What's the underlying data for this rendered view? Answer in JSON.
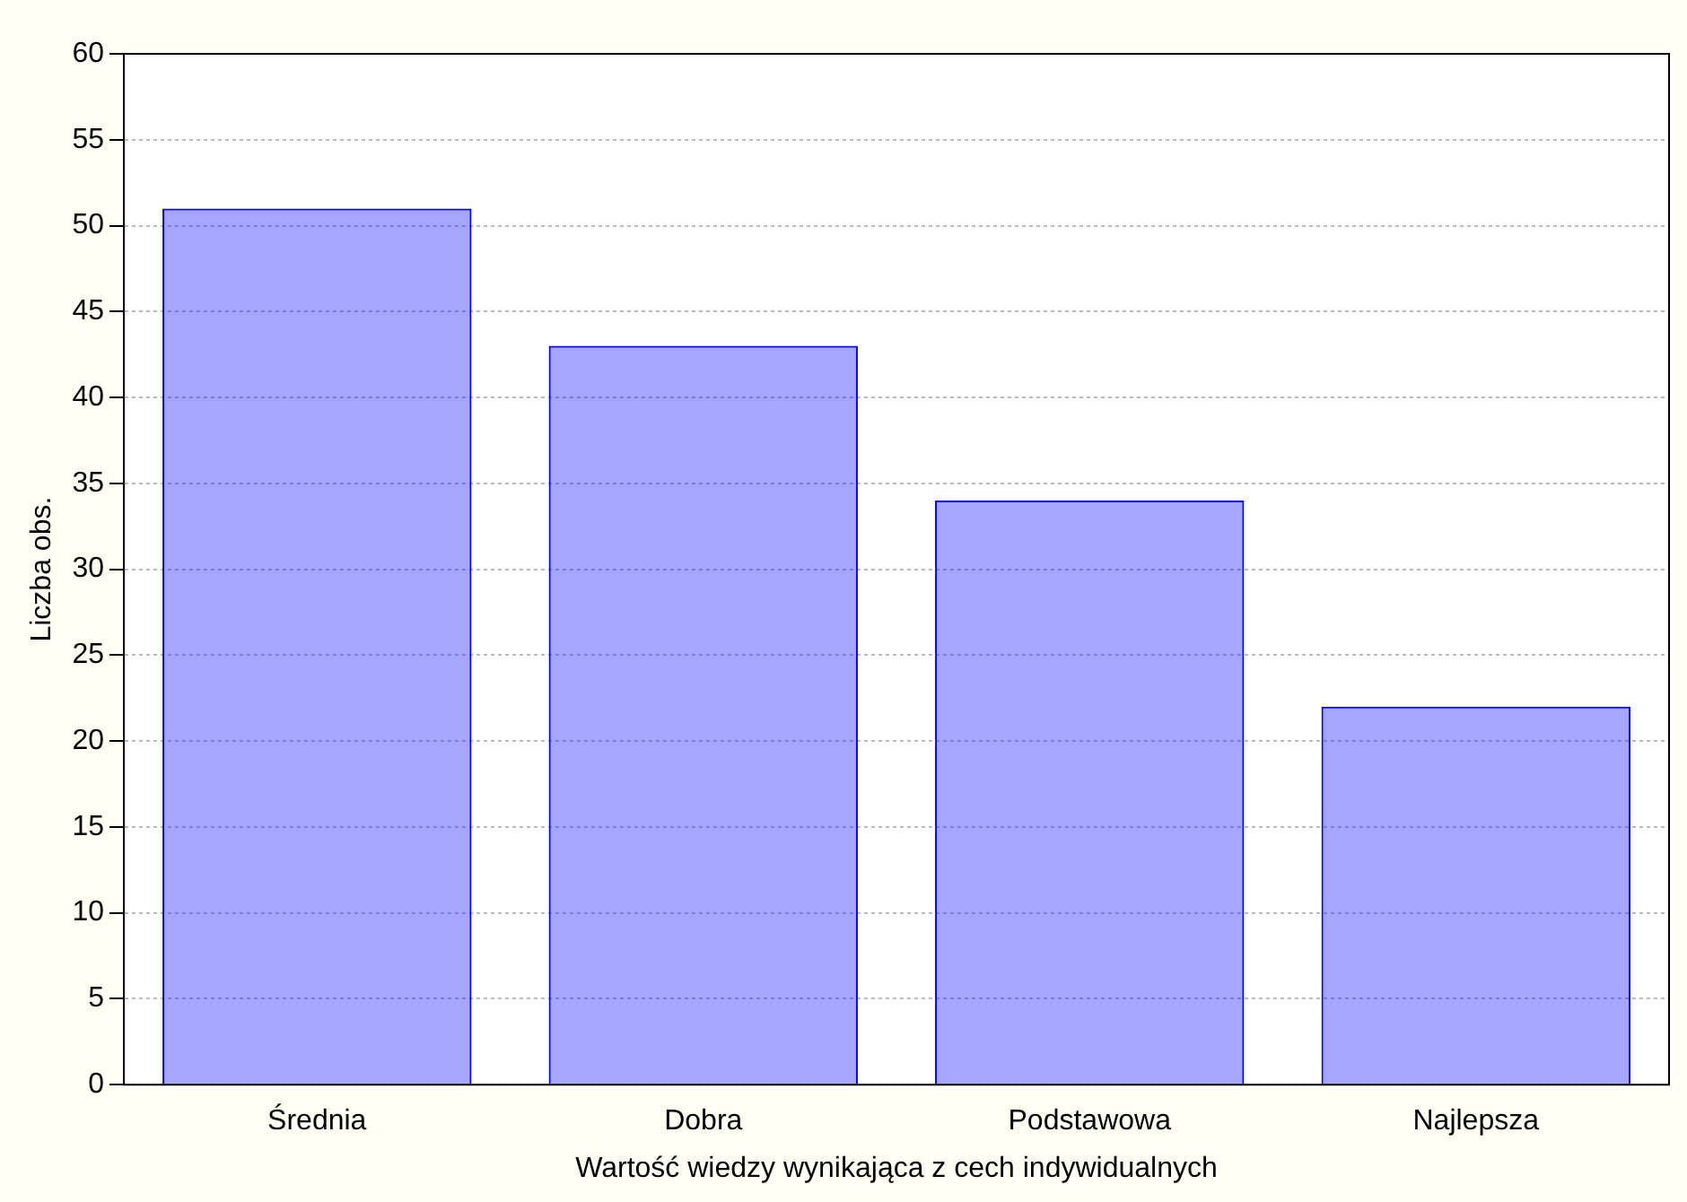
{
  "chart_data": {
    "type": "bar",
    "xlabel": "Wartość wiedzy wynikająca z cech indywidualnych",
    "ylabel": "Liczba obs.",
    "categories": [
      "Średnia",
      "Dobra",
      "Podstawowa",
      "Najlepsza"
    ],
    "values": [
      51,
      43,
      34,
      22
    ],
    "color": "#0000ff",
    "ylim": [
      0,
      60
    ],
    "yticks": [
      0,
      5,
      10,
      15,
      20,
      25,
      30,
      35,
      40,
      45,
      50,
      55,
      60
    ],
    "grid": "y"
  }
}
